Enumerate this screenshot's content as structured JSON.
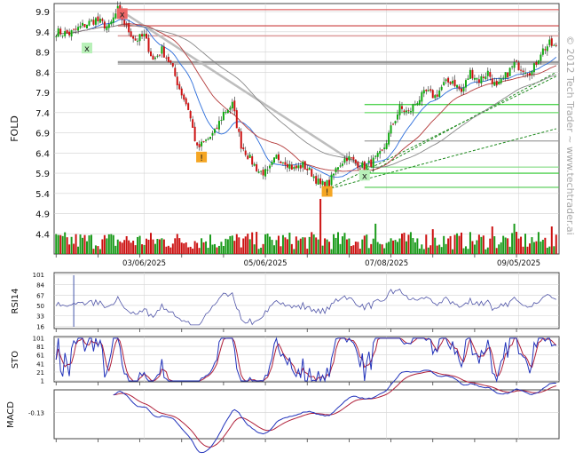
{
  "watermark": "© 2012 Tech Trader ~ www.techtrader.ai",
  "chart_data": [
    {
      "type": "candlestick",
      "ylabel": "FOLD",
      "yticks": [
        9.9,
        9.4,
        8.9,
        8.4,
        7.9,
        7.4,
        6.9,
        6.4,
        5.9,
        5.4,
        4.9,
        4.4
      ],
      "ylim": [
        3.9,
        10.1
      ],
      "xticks": [
        "03/06/2025",
        "05/06/2025",
        "07/08/2025",
        "09/05/2025"
      ],
      "price_anchors": [
        [
          0,
          9.4
        ],
        [
          6,
          9.35
        ],
        [
          12,
          9.55
        ],
        [
          18,
          9.7
        ],
        [
          24,
          9.5
        ],
        [
          28,
          9.95
        ],
        [
          32,
          9.5
        ],
        [
          36,
          9.2
        ],
        [
          40,
          9.3
        ],
        [
          44,
          8.7
        ],
        [
          48,
          8.95
        ],
        [
          52,
          8.6
        ],
        [
          56,
          8.0
        ],
        [
          60,
          7.5
        ],
        [
          64,
          6.5
        ],
        [
          68,
          6.7
        ],
        [
          72,
          6.9
        ],
        [
          76,
          7.4
        ],
        [
          80,
          7.6
        ],
        [
          84,
          6.6
        ],
        [
          88,
          6.25
        ],
        [
          92,
          5.95
        ],
        [
          96,
          5.9
        ],
        [
          100,
          6.3
        ],
        [
          104,
          6.2
        ],
        [
          108,
          6.0
        ],
        [
          112,
          6.1
        ],
        [
          116,
          5.9
        ],
        [
          120,
          5.6
        ],
        [
          124,
          5.65
        ],
        [
          128,
          6.1
        ],
        [
          132,
          6.3
        ],
        [
          136,
          6.15
        ],
        [
          140,
          6.05
        ],
        [
          144,
          6.2
        ],
        [
          148,
          6.4
        ],
        [
          152,
          7.0
        ],
        [
          156,
          7.5
        ],
        [
          160,
          7.4
        ],
        [
          164,
          7.7
        ],
        [
          168,
          7.9
        ],
        [
          172,
          7.8
        ],
        [
          176,
          8.1
        ],
        [
          180,
          8.2
        ],
        [
          184,
          7.9
        ],
        [
          188,
          8.4
        ],
        [
          192,
          8.2
        ],
        [
          196,
          8.4
        ],
        [
          200,
          8.0
        ],
        [
          204,
          8.3
        ],
        [
          208,
          8.6
        ],
        [
          212,
          8.5
        ],
        [
          216,
          8.4
        ],
        [
          220,
          8.9
        ],
        [
          224,
          9.1
        ],
        [
          227,
          9.0
        ]
      ],
      "volume_spikes": [
        [
          120,
          1.0
        ],
        [
          171,
          0.45
        ],
        [
          145,
          0.55
        ],
        [
          208,
          0.55
        ],
        [
          198,
          0.5
        ],
        [
          225,
          0.5
        ]
      ],
      "markers": [
        {
          "label": "x",
          "kind": "sell",
          "bar": 30,
          "price": 9.85
        },
        {
          "label": "x",
          "kind": "buy",
          "bar": 14,
          "price": 9.0
        },
        {
          "label": "!",
          "kind": "alert",
          "bar": 66,
          "price": 6.3
        },
        {
          "label": "!",
          "kind": "alert",
          "bar": 123,
          "price": 5.45
        },
        {
          "label": "x",
          "kind": "buy",
          "bar": 140,
          "price": 5.85
        }
      ],
      "horizontal_levels": [
        {
          "price": 9.95,
          "color": "#e06060"
        },
        {
          "price": 9.55,
          "color": "#cc4444"
        },
        {
          "price": 9.3,
          "color": "#d88a8a"
        },
        {
          "price": 8.65,
          "color": "#888888"
        },
        {
          "price": 8.6,
          "color": "#aaaaaa"
        },
        {
          "price": 7.6,
          "color": "#33cc33"
        },
        {
          "price": 7.4,
          "color": "#66dd66"
        },
        {
          "price": 6.7,
          "color": "#999999"
        },
        {
          "price": 6.05,
          "color": "#88dd88"
        },
        {
          "price": 5.9,
          "color": "#33cc33"
        },
        {
          "price": 5.55,
          "color": "#55cc55"
        }
      ]
    },
    {
      "type": "line",
      "ylabel": "RSI14",
      "yticks": [
        101,
        84,
        67,
        50,
        33,
        16
      ],
      "ylim": [
        12,
        104
      ]
    },
    {
      "type": "line",
      "ylabel": "STO",
      "yticks": [
        101,
        81,
        61,
        41,
        21,
        1
      ],
      "ylim": [
        -2,
        104
      ]
    },
    {
      "type": "line",
      "ylabel": "MACD",
      "yticks": [
        -0.13
      ],
      "ylim": [
        -0.42,
        0.12
      ]
    }
  ]
}
